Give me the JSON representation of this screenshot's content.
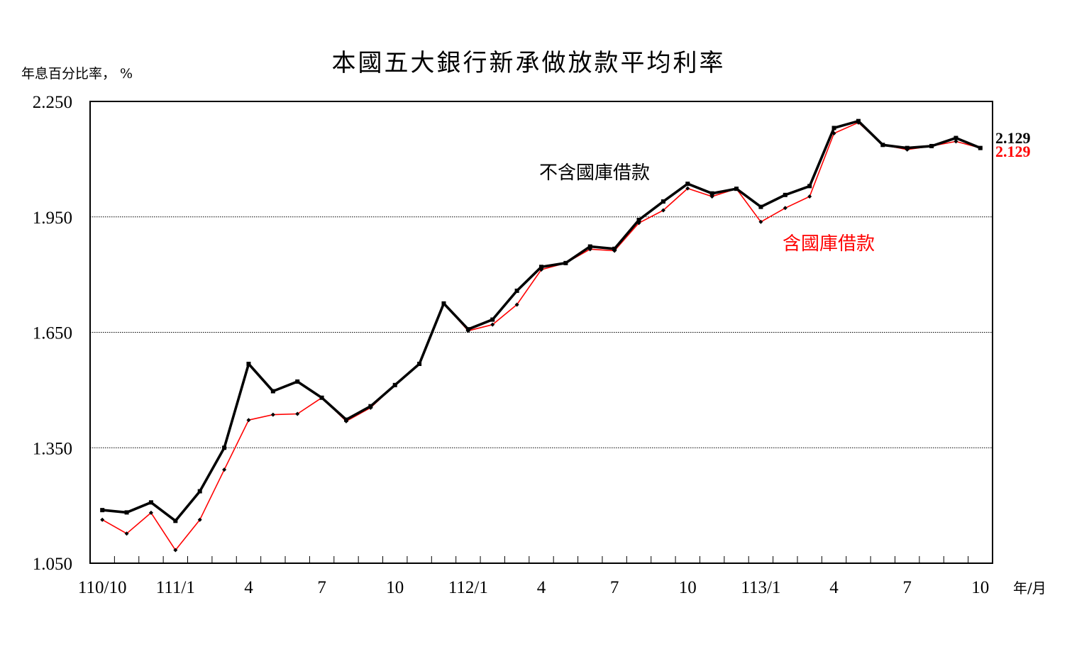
{
  "chart_data": {
    "type": "line",
    "title": "本國五大銀行新承做放款平均利率",
    "ylabel": "年息百分比率， %",
    "xlabel": "年/月",
    "ylim": [
      1.05,
      2.25
    ],
    "y_ticks": [
      "2.250",
      "1.950",
      "1.650",
      "1.350",
      "1.050"
    ],
    "y_tick_values": [
      2.25,
      1.95,
      1.65,
      1.35,
      1.05
    ],
    "grid": true,
    "x_tick_labels": [
      {
        "index": 0,
        "label": "110/10"
      },
      {
        "index": 3,
        "label": "111/1"
      },
      {
        "index": 6,
        "label": "4"
      },
      {
        "index": 9,
        "label": "7"
      },
      {
        "index": 12,
        "label": "10"
      },
      {
        "index": 15,
        "label": "112/1"
      },
      {
        "index": 18,
        "label": "4"
      },
      {
        "index": 21,
        "label": "7"
      },
      {
        "index": 24,
        "label": "10"
      },
      {
        "index": 27,
        "label": "113/1"
      },
      {
        "index": 30,
        "label": "4"
      },
      {
        "index": 33,
        "label": "7"
      },
      {
        "index": 36,
        "label": "10"
      }
    ],
    "series": [
      {
        "name": "不含國庫借款",
        "color": "#000000",
        "end_label": "2.129",
        "values": [
          1.188,
          1.182,
          1.208,
          1.16,
          1.237,
          1.35,
          1.568,
          1.497,
          1.522,
          1.48,
          1.423,
          1.458,
          1.513,
          1.568,
          1.725,
          1.658,
          1.683,
          1.758,
          1.82,
          1.83,
          1.873,
          1.867,
          1.942,
          1.99,
          2.036,
          2.011,
          2.023,
          1.976,
          2.007,
          2.03,
          2.181,
          2.199,
          2.137,
          2.129,
          2.134,
          2.155,
          2.129
        ]
      },
      {
        "name": "含國庫借款",
        "color": "#ff0000",
        "end_label": "2.129",
        "values": [
          1.163,
          1.127,
          1.181,
          1.084,
          1.163,
          1.293,
          1.422,
          1.436,
          1.438,
          1.48,
          1.419,
          1.454,
          1.513,
          1.568,
          1.725,
          1.654,
          1.67,
          1.722,
          1.813,
          1.83,
          1.866,
          1.862,
          1.934,
          1.967,
          2.024,
          2.003,
          2.023,
          1.937,
          1.973,
          2.003,
          2.167,
          2.195,
          2.137,
          2.125,
          2.134,
          2.146,
          2.129
        ]
      }
    ]
  },
  "colors": {
    "black_series": "#000000",
    "red_series": "#ff0000",
    "grid": "#000000"
  }
}
